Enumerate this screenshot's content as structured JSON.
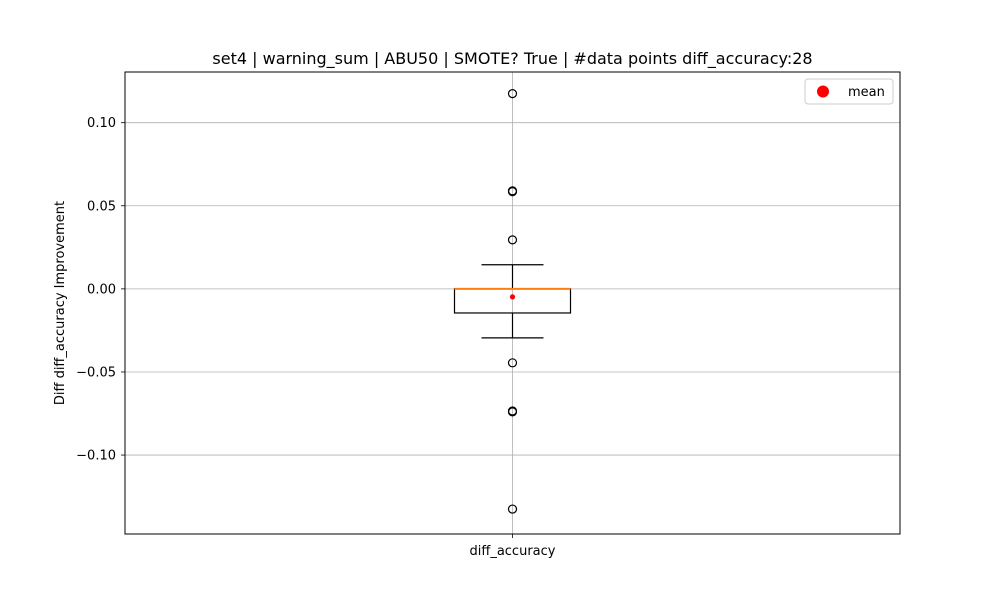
{
  "chart_data": {
    "type": "box",
    "title": "set4 | warning_sum | ABU50 | SMOTE? True | #data points diff_accuracy:28",
    "xlabel": "",
    "ylabel": "Diff diff_accuracy Improvement",
    "categories": [
      "diff_accuracy"
    ],
    "ylim": [
      -0.1475,
      0.1305
    ],
    "yticks": [
      0.1,
      0.05,
      0.0,
      -0.05,
      -0.1
    ],
    "ytick_labels": [
      "0.10",
      "0.05",
      "0.00",
      "−0.05",
      "−0.10"
    ],
    "grid": true,
    "legend": {
      "position": "top-right",
      "entries": [
        {
          "label": "mean",
          "color": "#ff0000"
        }
      ]
    },
    "box": {
      "q1": -0.0145,
      "median": 0.0,
      "q3": 0.0,
      "whisker_low": -0.0295,
      "whisker_high": 0.0145,
      "mean": -0.0048,
      "outliers": [
        0.1175,
        0.059,
        0.0585,
        0.0295,
        -0.0445,
        -0.0735,
        -0.074,
        -0.1325
      ]
    },
    "colors": {
      "box": "#000000",
      "median": "#ff7f0e",
      "mean": "#ff0000",
      "grid": "#b0b0b0"
    }
  }
}
